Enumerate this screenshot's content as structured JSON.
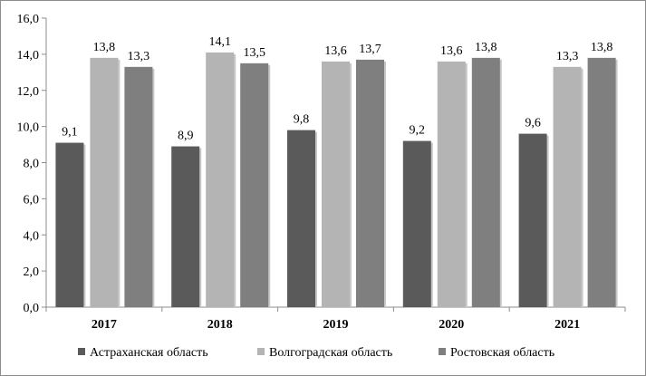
{
  "chart_data": {
    "type": "bar",
    "title": "",
    "xlabel": "",
    "ylabel": "",
    "categories": [
      "2017",
      "2018",
      "2019",
      "2020",
      "2021"
    ],
    "series": [
      {
        "name": "Астраханская область",
        "color": "#5a5a5a",
        "values": [
          9.1,
          8.9,
          9.8,
          9.2,
          9.6
        ],
        "labels": [
          "9,1",
          "8,9",
          "9,8",
          "9,2",
          "9,6"
        ]
      },
      {
        "name": "Волгоградская область",
        "color": "#b4b4b4",
        "values": [
          13.8,
          14.1,
          13.6,
          13.6,
          13.3
        ],
        "labels": [
          "13,8",
          "14,1",
          "13,6",
          "13,6",
          "13,3"
        ]
      },
      {
        "name": "Ростовская область",
        "color": "#7f7f7f",
        "values": [
          13.3,
          13.5,
          13.7,
          13.8,
          13.8
        ],
        "labels": [
          "13,3",
          "13,5",
          "13,7",
          "13,8",
          "13,8"
        ]
      }
    ],
    "ylim": [
      0,
      16
    ],
    "yticks": [
      0,
      2,
      4,
      6,
      8,
      10,
      12,
      14,
      16
    ],
    "ytick_labels": [
      "0,0",
      "2,0",
      "4,0",
      "6,0",
      "8,0",
      "10,0",
      "12,0",
      "14,0",
      "16,0"
    ],
    "grid": false,
    "legend_position": "bottom"
  }
}
